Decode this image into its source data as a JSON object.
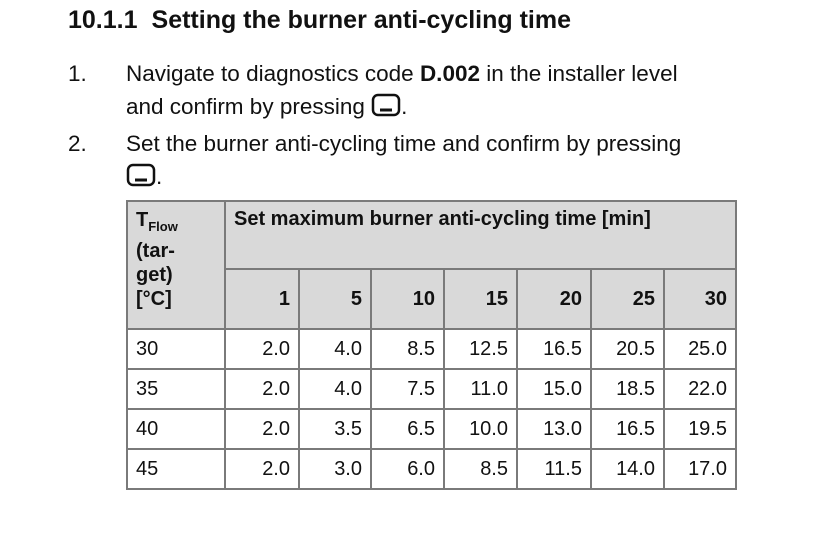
{
  "section": {
    "number": "10.1.1",
    "title": "Setting the burner anti-cycling time"
  },
  "steps": [
    {
      "number": "1.",
      "text_before": "Navigate to diagnostics code ",
      "code": "D.002",
      "text_after": " in the installer level",
      "line2": "and confirm by pressing",
      "end": "."
    },
    {
      "number": "2.",
      "text": "Set the burner anti-cycling time and confirm by pressing",
      "end": "."
    }
  ],
  "table": {
    "corner": {
      "symbol": "T",
      "subscript": "Flow",
      "lines": [
        "(tar-",
        "get)",
        "[°C]"
      ]
    },
    "title": "Set maximum burner anti-cycling time [min]",
    "columns": [
      "1",
      "5",
      "10",
      "15",
      "20",
      "25",
      "30"
    ],
    "rows": [
      [
        "30",
        "2.0",
        "4.0",
        "8.5",
        "12.5",
        "16.5",
        "20.5",
        "25.0"
      ],
      [
        "35",
        "2.0",
        "4.0",
        "7.5",
        "11.0",
        "15.0",
        "18.5",
        "22.0"
      ],
      [
        "40",
        "2.0",
        "3.5",
        "6.5",
        "10.0",
        "13.0",
        "16.5",
        "19.5"
      ],
      [
        "45",
        "2.0",
        "3.0",
        "6.0",
        "8.5",
        "11.5",
        "14.0",
        "17.0"
      ]
    ]
  }
}
